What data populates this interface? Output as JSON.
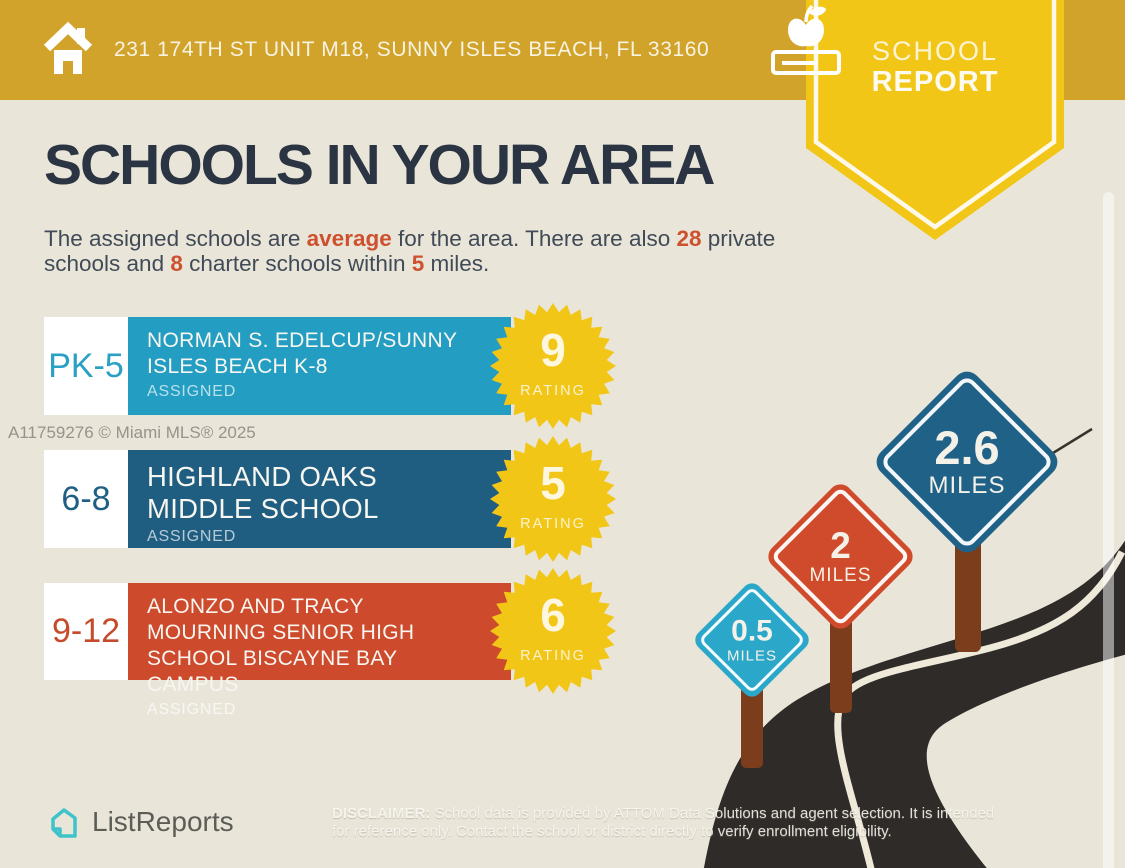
{
  "header": {
    "address": "231 174TH ST UNIT M18, SUNNY ISLES BEACH, FL 33160"
  },
  "badge": {
    "line1": "SCHOOL",
    "line2": "REPORT"
  },
  "main": {
    "title": "SCHOOLS IN YOUR AREA",
    "intro": {
      "part1": "The assigned schools are ",
      "highlight1": "average",
      "part2": " for the area. There are also ",
      "highlight2": "28",
      "part3": " private schools and ",
      "highlight3": "8",
      "part4": " charter schools within ",
      "highlight4": "5",
      "part5": " miles."
    }
  },
  "watermark": "A11759276 © Miami MLS® 2025",
  "schools": [
    {
      "grades": "PK-5",
      "name_lines": [
        "NORMAN S. EDELCUP/SUNNY",
        "ISLES BEACH K-8"
      ],
      "status": "ASSIGNED",
      "rating": "9",
      "rating_label": "RATING",
      "color": "#239EC2"
    },
    {
      "grades": "6-8",
      "name_lines": [
        "HIGHLAND OAKS",
        "MIDDLE SCHOOL"
      ],
      "status": "ASSIGNED",
      "rating": "5",
      "rating_label": "RATING",
      "color": "#1F5E81"
    },
    {
      "grades": "9-12",
      "name_lines": [
        "ALONZO AND TRACY",
        "MOURNING SENIOR HIGH",
        "SCHOOL BISCAYNE BAY",
        "CAMPUS"
      ],
      "status": "ASSIGNED",
      "rating": "6",
      "rating_label": "RATING",
      "color": "#CE4A2D"
    }
  ],
  "distance_signs": [
    {
      "value": "0.5",
      "unit": "MILES",
      "color": "#2BA7C9"
    },
    {
      "value": "2",
      "unit": "MILES",
      "color": "#D04B2B"
    },
    {
      "value": "2.6",
      "unit": "MILES",
      "color": "#1F6187"
    }
  ],
  "footer": {
    "brand": "ListReports",
    "disclaimer": {
      "label": "DISCLAIMER:",
      "line1": " School data is provided by ATTOM Data Solutions and agent selection. It is intended",
      "line2": "for reference only. Contact the school or district directly to verify enrollment eligibility."
    }
  },
  "colors": {
    "header_gold": "#D1A32B",
    "badge_yellow": "#F2C617",
    "background_beige": "#E9E5D9",
    "title_navy": "#2A3442",
    "accent_orange": "#CD512F",
    "teal": "#239EC2",
    "dark_blue": "#1F5E81",
    "red": "#CE4A2D",
    "starburst_yellow": "#F2C617",
    "road_dark": "#2E2B28",
    "post_brown": "#7B3D1B",
    "logo_teal": "#3EC3CB"
  }
}
